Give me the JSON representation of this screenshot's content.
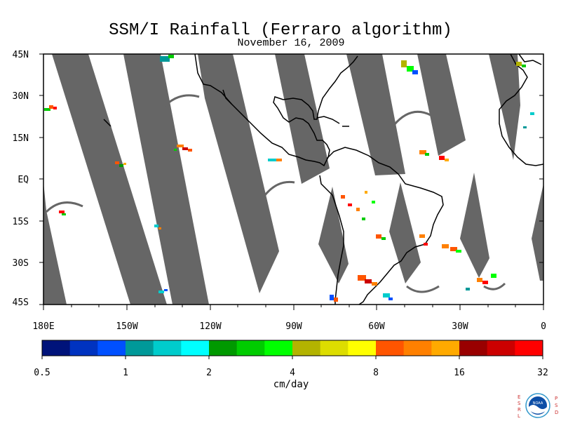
{
  "map": {
    "title": "SSM/I Rainfall (Ferraro algorithm)",
    "subtitle": "November 16, 2009",
    "lat_labels": [
      "45N",
      "30N",
      "15N",
      "EQ",
      "15S",
      "30S",
      "45S"
    ],
    "lon_labels": [
      "180E",
      "150W",
      "120W",
      "90W",
      "60W",
      "30W",
      "0"
    ],
    "extent": {
      "lon": [
        -180,
        0
      ],
      "lat": [
        -45,
        45
      ]
    },
    "swath_gap_color": "#666666",
    "coastline_color": "#000000"
  },
  "colorbar": {
    "units": "cm/day",
    "tick_labels": [
      "0.5",
      "1",
      "2",
      "4",
      "8",
      "16",
      "32"
    ],
    "colors": [
      "#00137a",
      "#0033c0",
      "#0050ff",
      "#009999",
      "#00cccc",
      "#00ffff",
      "#009900",
      "#00cc00",
      "#00ff00",
      "#b3b300",
      "#dddd00",
      "#ffff00",
      "#ff5500",
      "#ff8000",
      "#ffaa00",
      "#990000",
      "#cc0000",
      "#ff0000"
    ]
  },
  "logo": {
    "name": "NOAA",
    "left_letters": [
      "E",
      "S",
      "R",
      "L"
    ],
    "right_letters": [
      "P",
      "S",
      "D"
    ]
  }
}
